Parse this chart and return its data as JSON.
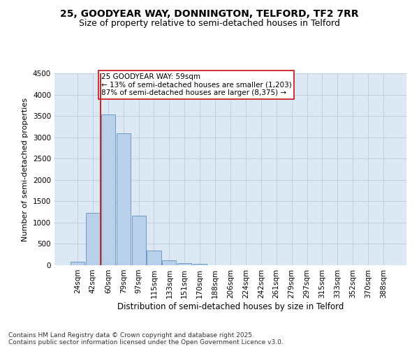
{
  "title_line1": "25, GOODYEAR WAY, DONNINGTON, TELFORD, TF2 7RR",
  "title_line2": "Size of property relative to semi-detached houses in Telford",
  "xlabel": "Distribution of semi-detached houses by size in Telford",
  "ylabel": "Number of semi-detached properties",
  "categories": [
    "24sqm",
    "42sqm",
    "60sqm",
    "79sqm",
    "97sqm",
    "115sqm",
    "133sqm",
    "151sqm",
    "170sqm",
    "188sqm",
    "206sqm",
    "224sqm",
    "242sqm",
    "261sqm",
    "279sqm",
    "297sqm",
    "315sqm",
    "333sqm",
    "352sqm",
    "370sqm",
    "388sqm"
  ],
  "values": [
    90,
    1220,
    3530,
    3100,
    1160,
    350,
    110,
    55,
    30,
    0,
    0,
    0,
    0,
    0,
    0,
    0,
    0,
    0,
    0,
    0,
    0
  ],
  "bar_color": "#b8d0ea",
  "bar_edge_color": "#6090c0",
  "vline_color": "#cc2222",
  "annotation_text": "25 GOODYEAR WAY: 59sqm\n← 13% of semi-detached houses are smaller (1,203)\n87% of semi-detached houses are larger (8,375) →",
  "annotation_box_color": "#ffffff",
  "annotation_box_edge": "#cc2222",
  "ylim": [
    0,
    4500
  ],
  "yticks": [
    0,
    500,
    1000,
    1500,
    2000,
    2500,
    3000,
    3500,
    4000,
    4500
  ],
  "grid_color": "#c0d0e0",
  "background_color": "#dce8f4",
  "footer_text": "Contains HM Land Registry data © Crown copyright and database right 2025.\nContains public sector information licensed under the Open Government Licence v3.0.",
  "title_fontsize": 10,
  "subtitle_fontsize": 9,
  "tick_fontsize": 7.5,
  "xlabel_fontsize": 8.5,
  "ylabel_fontsize": 8,
  "annotation_fontsize": 7.5,
  "footer_fontsize": 6.5
}
